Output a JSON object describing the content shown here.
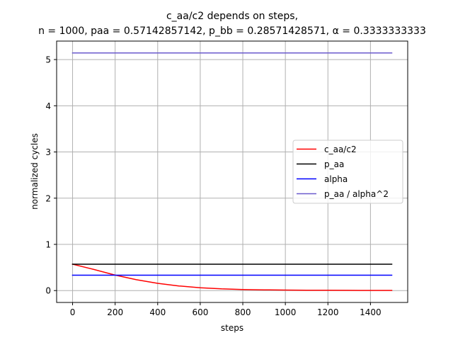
{
  "chart_data": {
    "type": "line",
    "title": "c_aa/c2 depends on steps,",
    "subtitle": "n = 1000, paa = 0.57142857142, p_bb = 0.28571428571, α = 0.3333333333",
    "xlabel": "steps",
    "ylabel": "normalized cycles",
    "xlim": [
      -75,
      1575
    ],
    "ylim": [
      -0.257,
      5.4
    ],
    "xticks": [
      0,
      200,
      400,
      600,
      800,
      1000,
      1200,
      1400
    ],
    "yticks": [
      0,
      1,
      2,
      3,
      4,
      5
    ],
    "grid": true,
    "legend_position": "center-right",
    "series": [
      {
        "name": "c_aa/c2",
        "color": "#ff0000",
        "x": [
          0,
          100,
          200,
          300,
          400,
          500,
          600,
          700,
          800,
          900,
          1000,
          1100,
          1200,
          1300,
          1400,
          1500
        ],
        "y": [
          0.571,
          0.457,
          0.335,
          0.235,
          0.157,
          0.1,
          0.062,
          0.038,
          0.024,
          0.016,
          0.011,
          0.008,
          0.006,
          0.005,
          0.004,
          0.004
        ]
      },
      {
        "name": "p_aa",
        "color": "#000000",
        "x": [
          0,
          1500
        ],
        "y": [
          0.5714,
          0.5714
        ]
      },
      {
        "name": "alpha",
        "color": "#0000ff",
        "x": [
          0,
          1500
        ],
        "y": [
          0.3333,
          0.3333
        ]
      },
      {
        "name": "p_aa / alpha^2",
        "color": "#6a5acd",
        "x": [
          0,
          1500
        ],
        "y": [
          5.1429,
          5.1429
        ]
      }
    ]
  }
}
